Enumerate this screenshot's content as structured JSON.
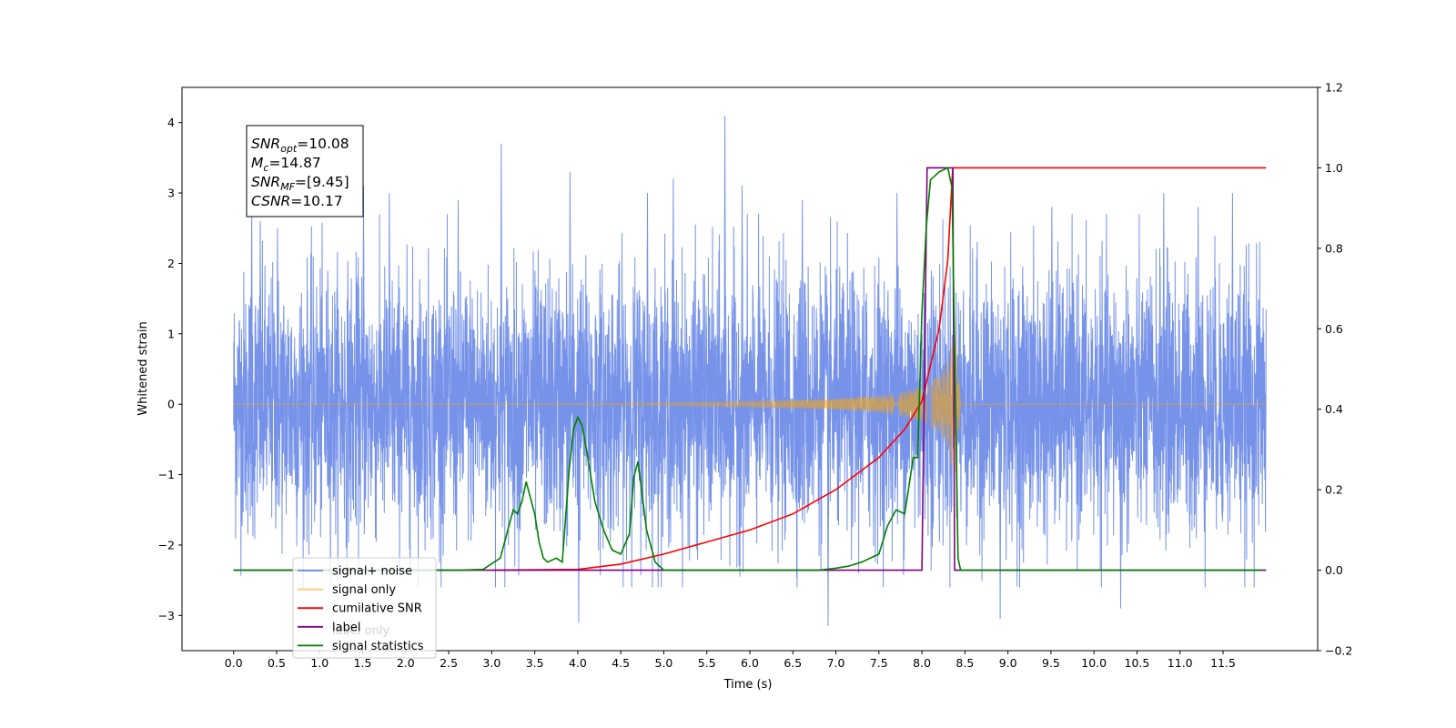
{
  "chart_data": {
    "type": "line",
    "xlabel": "Time (s)",
    "ylabel": "Whitened strain",
    "xlim": [
      -0.6,
      12.6
    ],
    "ylim_left": [
      -3.5,
      4.5
    ],
    "ylim_right": [
      -0.2,
      1.2
    ],
    "x_ticks": [
      0.0,
      0.5,
      1.0,
      1.5,
      2.0,
      2.5,
      3.0,
      3.5,
      4.0,
      4.5,
      5.0,
      5.5,
      6.0,
      6.5,
      7.0,
      7.5,
      8.0,
      8.5,
      9.0,
      9.5,
      10.0,
      10.5,
      11.0,
      11.5
    ],
    "x_tick_labels": [
      "0.0",
      "0.5",
      "1.0",
      "1.5",
      "2.0",
      "2.5",
      "3.0",
      "3.5",
      "4.0",
      "4.5",
      "5.0",
      "5.5",
      "6.0",
      "6.5",
      "7.0",
      "7.5",
      "8.0",
      "8.5",
      "9.0",
      "9.5",
      "10.0",
      "10.5",
      "11.0",
      "11.5"
    ],
    "y_left_ticks": [
      -3,
      -2,
      -1,
      0,
      1,
      2,
      3,
      4
    ],
    "y_left_tick_labels": [
      "−3",
      "−2",
      "−1",
      "0",
      "1",
      "2",
      "3",
      "4"
    ],
    "y_right_ticks": [
      -0.2,
      0.0,
      0.2,
      0.4,
      0.6,
      0.8,
      1.0,
      1.2
    ],
    "y_right_tick_labels": [
      "−0.2",
      "0.0",
      "0.2",
      "0.4",
      "0.6",
      "0.8",
      "1.0",
      "1.2"
    ],
    "legend_position": "lower-left",
    "textbox": {
      "lines": [
        {
          "sym": "SNR",
          "sub": "opt",
          "val": "=10.08"
        },
        {
          "sym": "M",
          "sub": "c",
          "val": "=14.87"
        },
        {
          "sym": "SNR",
          "sub": "MF",
          "val": "=[9.45]"
        },
        {
          "sym": "CSNR",
          "sub": "",
          "val": "=10.17"
        }
      ]
    },
    "series": [
      {
        "name": "signal+ noise",
        "color": "#4169e1",
        "axis": "left",
        "x_range": [
          0.0,
          12.0
        ],
        "envelope_typical": 1.6,
        "x": [
          0.2,
          0.3,
          0.5,
          1.5,
          1.8,
          2.6,
          3.1,
          3.9,
          4.0,
          4.8,
          5.1,
          5.7,
          5.9,
          6.6,
          6.9,
          7.7,
          8.1,
          8.9,
          9.5,
          10.3,
          10.8,
          11.2,
          11.6
        ],
        "peaks": [
          2.8,
          2.6,
          2.5,
          3.1,
          3.0,
          2.9,
          3.7,
          3.3,
          -3.1,
          3.0,
          3.2,
          4.1,
          3.1,
          2.9,
          -3.15,
          3.0,
          1.9,
          -3.05,
          2.8,
          -2.9,
          3.0,
          2.8,
          3.0
        ]
      },
      {
        "name": "signal only",
        "color": "#ffa500",
        "axis": "left",
        "x": [
          0.0,
          3.0,
          4.0,
          5.0,
          6.0,
          7.0,
          7.5,
          7.8,
          8.0,
          8.2,
          8.3,
          8.35,
          8.4,
          8.45,
          12.0
        ],
        "amplitude": [
          0.0,
          0.003,
          0.01,
          0.02,
          0.04,
          0.08,
          0.12,
          0.18,
          0.25,
          0.4,
          0.6,
          0.9,
          1.0,
          0.0,
          0.0
        ]
      },
      {
        "name": "cumilative SNR",
        "color": "#ff0000",
        "axis": "right",
        "x": [
          3.0,
          4.0,
          4.5,
          5.0,
          5.5,
          6.0,
          6.5,
          7.0,
          7.5,
          7.8,
          8.0,
          8.2,
          8.3,
          8.35,
          8.36,
          12.0
        ],
        "values": [
          0.0,
          0.002,
          0.015,
          0.04,
          0.07,
          0.1,
          0.14,
          0.2,
          0.28,
          0.35,
          0.42,
          0.6,
          0.77,
          0.97,
          1.0,
          1.0
        ]
      },
      {
        "name": "label",
        "color": "#800080",
        "axis": "right",
        "x": [
          0.0,
          8.0,
          8.06,
          8.36,
          8.38,
          12.0
        ],
        "values": [
          0.0,
          0.0,
          1.0,
          1.0,
          0.0,
          0.0
        ]
      },
      {
        "name": "label only",
        "color": "#800080",
        "axis": "right",
        "hidden_in_legend": true,
        "x": [],
        "values": []
      },
      {
        "name": "signal statistics",
        "color": "#008000",
        "axis": "right",
        "x": [
          0.0,
          2.6,
          2.9,
          3.1,
          3.25,
          3.3,
          3.35,
          3.4,
          3.5,
          3.55,
          3.6,
          3.65,
          3.75,
          3.82,
          3.9,
          3.95,
          4.0,
          4.05,
          4.1,
          4.2,
          4.3,
          4.4,
          4.5,
          4.6,
          4.65,
          4.7,
          4.8,
          4.9,
          5.0,
          6.8,
          7.0,
          7.15,
          7.3,
          7.5,
          7.6,
          7.7,
          7.8,
          7.9,
          7.95,
          8.0,
          8.05,
          8.1,
          8.2,
          8.3,
          8.35,
          8.42,
          8.45,
          11.95
        ],
        "values": [
          0.0,
          0.0,
          0.002,
          0.03,
          0.15,
          0.14,
          0.17,
          0.22,
          0.14,
          0.07,
          0.03,
          0.02,
          0.03,
          0.02,
          0.25,
          0.35,
          0.38,
          0.36,
          0.3,
          0.17,
          0.1,
          0.05,
          0.04,
          0.09,
          0.23,
          0.27,
          0.1,
          0.02,
          0.0,
          0.0,
          0.005,
          0.01,
          0.02,
          0.04,
          0.11,
          0.15,
          0.14,
          0.28,
          0.28,
          0.64,
          0.85,
          0.97,
          0.99,
          1.0,
          0.95,
          0.03,
          0.0,
          0.0
        ]
      }
    ]
  }
}
